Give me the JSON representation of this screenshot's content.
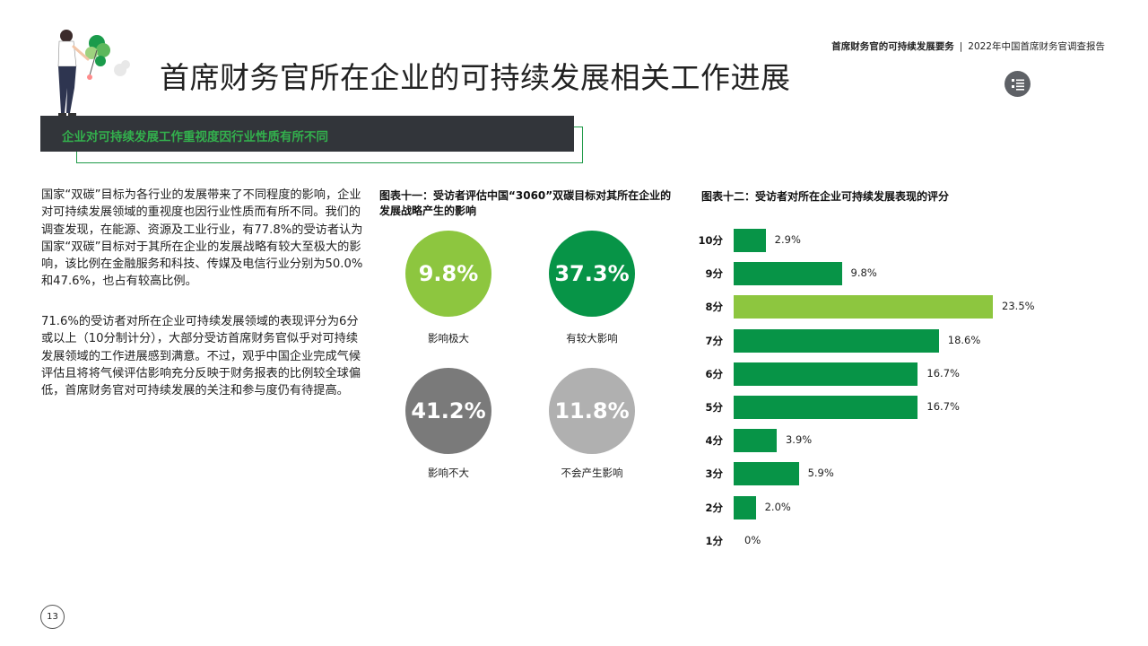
{
  "header": {
    "report_section": "首席财务官的可持续发展要务",
    "report_name": "2022年中国首席财务官调查报告",
    "separator": "|"
  },
  "page_title": "首席财务官所在企业的可持续发展相关工作进展",
  "section_banner": "企业对可持续发展工作重视度因行业性质有所不同",
  "paragraphs": [
    "国家“双碳”目标为各行业的发展带来了不同程度的影响，企业对可持续发展领域的重视度也因行业性质而有所不同。我们的调查发现，在能源、资源及工业行业，有77.8%的受访者认为国家“双碳”目标对于其所在企业的发展战略有较大至极大的影响，该比例在金融服务和科技、传媒及电信行业分别为50.0%和47.6%，也占有较高比例。",
    "71.6%的受访者对所在企业可持续发展领域的表现评分为6分或以上（10分制计分），大部分受访首席财务官似乎对可持续发展领域的工作进展感到满意。不过，观乎中国企业完成气候评估且将将气候评估影响充分反映于财务报表的比例较全球偏低，首席财务官对可持续发展的关注和参与度仍有待提高。"
  ],
  "icons": {
    "menu": "list-menu-icon",
    "illustration": "person-with-plant-illustration"
  },
  "colors": {
    "bright_green": "#8dc63f",
    "green": "#079447",
    "dark_gray": "#7a7a7a",
    "light_gray": "#b0b0b0",
    "banner_bg": "#32353a",
    "banner_text": "#33b04d"
  },
  "page_number": "13",
  "chart_data": [
    {
      "type": "bubble",
      "title": "图表十一：受访者评估中国“3060”双碳目标对其所在企业的发展战略产生的影响",
      "categories": [
        "影响极大",
        "有较大影响",
        "影响不大",
        "不会产生影响"
      ],
      "values": [
        9.8,
        37.3,
        41.2,
        11.8
      ],
      "value_labels": [
        "9.8%",
        "37.3%",
        "41.2%",
        "11.8%"
      ],
      "unit": "%"
    },
    {
      "type": "bar",
      "orientation": "horizontal",
      "title": "图表十二：受访者对所在企业可持续发展表现的评分",
      "categories": [
        "10分",
        "9分",
        "8分",
        "7分",
        "6分",
        "5分",
        "4分",
        "3分",
        "2分",
        "1分"
      ],
      "values": [
        2.9,
        9.8,
        23.5,
        18.6,
        16.7,
        16.7,
        3.9,
        5.9,
        2.0,
        0
      ],
      "value_labels": [
        "2.9%",
        "9.8%",
        "23.5%",
        "18.6%",
        "16.7%",
        "16.7%",
        "3.9%",
        "5.9%",
        "2.0%",
        "0%"
      ],
      "highlight_index": 2,
      "unit": "%"
    }
  ]
}
